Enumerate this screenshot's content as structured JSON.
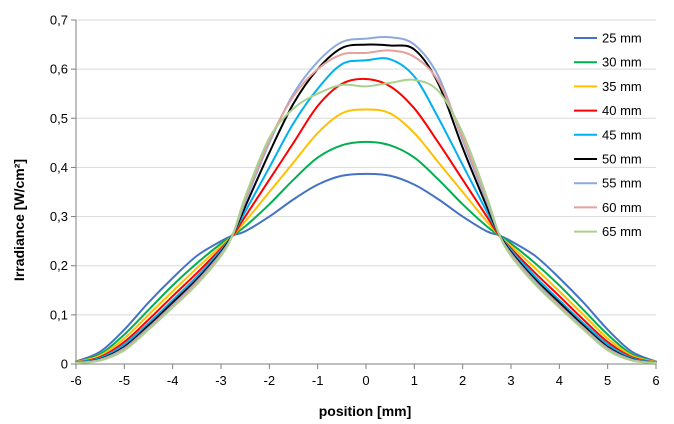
{
  "chart_data": {
    "type": "line",
    "xlabel": "position [mm]",
    "ylabel": "Irradiance [W/cm²]",
    "xlim": [
      -6,
      6
    ],
    "ylim": [
      0,
      0.7
    ],
    "x_ticks": [
      "-6",
      "-5",
      "-4",
      "-3",
      "-2",
      "-1",
      "0",
      "1",
      "2",
      "3",
      "4",
      "5",
      "6"
    ],
    "y_ticks": [
      "0",
      "0,1",
      "0,2",
      "0,3",
      "0,4",
      "0,5",
      "0,6",
      "0,7"
    ],
    "grid": "horizontal",
    "legend_position": "right",
    "x": [
      -6,
      -5.5,
      -5,
      -4.5,
      -4,
      -3.5,
      -3,
      -2.75,
      -2.5,
      -2,
      -1.5,
      -1,
      -0.5,
      0,
      0.5,
      1,
      1.5,
      2,
      2.5,
      2.75,
      3,
      3.5,
      4,
      4.5,
      5,
      5.5,
      6
    ],
    "series": [
      {
        "name": "25 mm",
        "color": "#4472C4",
        "values": [
          0.005,
          0.025,
          0.07,
          0.125,
          0.175,
          0.22,
          0.25,
          0.262,
          0.27,
          0.3,
          0.335,
          0.365,
          0.383,
          0.387,
          0.383,
          0.365,
          0.335,
          0.3,
          0.27,
          0.262,
          0.25,
          0.22,
          0.175,
          0.125,
          0.07,
          0.025,
          0.005
        ]
      },
      {
        "name": "30 mm",
        "color": "#00B050",
        "values": [
          0.004,
          0.02,
          0.06,
          0.11,
          0.16,
          0.205,
          0.245,
          0.262,
          0.28,
          0.325,
          0.375,
          0.42,
          0.445,
          0.452,
          0.445,
          0.42,
          0.375,
          0.325,
          0.28,
          0.262,
          0.245,
          0.205,
          0.16,
          0.11,
          0.06,
          0.02,
          0.004
        ]
      },
      {
        "name": "35 mm",
        "color": "#FFC000",
        "values": [
          0.004,
          0.017,
          0.052,
          0.1,
          0.148,
          0.195,
          0.24,
          0.262,
          0.29,
          0.35,
          0.41,
          0.47,
          0.51,
          0.518,
          0.51,
          0.47,
          0.41,
          0.35,
          0.29,
          0.262,
          0.24,
          0.195,
          0.148,
          0.1,
          0.052,
          0.017,
          0.004
        ]
      },
      {
        "name": "40 mm",
        "color": "#FF0000",
        "values": [
          0.003,
          0.014,
          0.045,
          0.09,
          0.138,
          0.185,
          0.235,
          0.262,
          0.3,
          0.375,
          0.45,
          0.525,
          0.57,
          0.58,
          0.565,
          0.52,
          0.45,
          0.375,
          0.3,
          0.262,
          0.235,
          0.185,
          0.138,
          0.09,
          0.045,
          0.014,
          0.003
        ]
      },
      {
        "name": "45 mm",
        "color": "#00B0F0",
        "values": [
          0.003,
          0.012,
          0.04,
          0.083,
          0.13,
          0.178,
          0.232,
          0.265,
          0.31,
          0.4,
          0.49,
          0.56,
          0.61,
          0.618,
          0.62,
          0.585,
          0.5,
          0.405,
          0.31,
          0.265,
          0.232,
          0.178,
          0.13,
          0.083,
          0.04,
          0.012,
          0.003
        ]
      },
      {
        "name": "50 mm",
        "color": "#000000",
        "values": [
          0.002,
          0.01,
          0.035,
          0.078,
          0.125,
          0.172,
          0.228,
          0.265,
          0.32,
          0.43,
          0.53,
          0.6,
          0.643,
          0.65,
          0.648,
          0.64,
          0.57,
          0.44,
          0.32,
          0.265,
          0.228,
          0.172,
          0.125,
          0.078,
          0.035,
          0.01,
          0.002
        ]
      },
      {
        "name": "55 mm",
        "color": "#8EA9DB",
        "values": [
          0.002,
          0.009,
          0.032,
          0.074,
          0.12,
          0.168,
          0.225,
          0.265,
          0.33,
          0.45,
          0.55,
          0.615,
          0.655,
          0.662,
          0.665,
          0.65,
          0.585,
          0.455,
          0.33,
          0.265,
          0.225,
          0.168,
          0.12,
          0.074,
          0.032,
          0.009,
          0.002
        ]
      },
      {
        "name": "60 mm",
        "color": "#E6A09E",
        "values": [
          0.002,
          0.008,
          0.03,
          0.072,
          0.118,
          0.165,
          0.222,
          0.265,
          0.335,
          0.455,
          0.545,
          0.6,
          0.63,
          0.633,
          0.638,
          0.625,
          0.575,
          0.46,
          0.335,
          0.265,
          0.222,
          0.165,
          0.118,
          0.072,
          0.03,
          0.008,
          0.002
        ]
      },
      {
        "name": "65 mm",
        "color": "#A9D18E",
        "values": [
          0.002,
          0.007,
          0.028,
          0.07,
          0.115,
          0.162,
          0.22,
          0.265,
          0.34,
          0.46,
          0.52,
          0.55,
          0.568,
          0.565,
          0.572,
          0.578,
          0.555,
          0.47,
          0.34,
          0.265,
          0.22,
          0.162,
          0.115,
          0.07,
          0.028,
          0.007,
          0.002
        ]
      }
    ]
  }
}
